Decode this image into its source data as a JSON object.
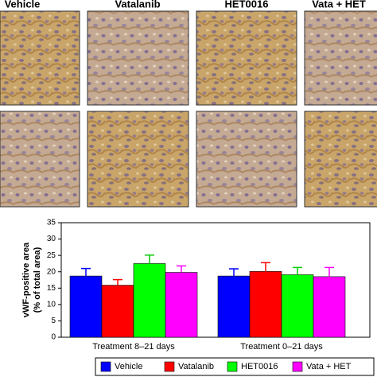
{
  "chart_data": {
    "type": "bar",
    "panel_labels": [
      "Vehicle",
      "Vatalanib",
      "HET0016",
      "Vata + HET"
    ],
    "ylabel": [
      "vWF-positive area",
      "(% of total area)"
    ],
    "categories": [
      "Treatment 8–21 days",
      "Treatment 0–21 days"
    ],
    "series": [
      {
        "name": "Vehicle",
        "color": "#0000ff",
        "values": [
          18.7,
          18.7
        ],
        "errors": [
          2.3,
          2.2
        ]
      },
      {
        "name": "Vatalanib",
        "color": "#ff0000",
        "values": [
          15.9,
          20.1
        ],
        "errors": [
          1.7,
          2.7
        ]
      },
      {
        "name": "HET0016",
        "color": "#00ff00",
        "values": [
          22.5,
          19.1
        ],
        "errors": [
          2.6,
          2.2
        ]
      },
      {
        "name": "Vata + HET",
        "color": "#ff00ff",
        "values": [
          19.8,
          18.5
        ],
        "errors": [
          2.0,
          2.8
        ]
      }
    ],
    "ylim": [
      0,
      35
    ],
    "yticks": [
      0,
      5,
      10,
      15,
      20,
      25,
      30,
      35
    ]
  }
}
